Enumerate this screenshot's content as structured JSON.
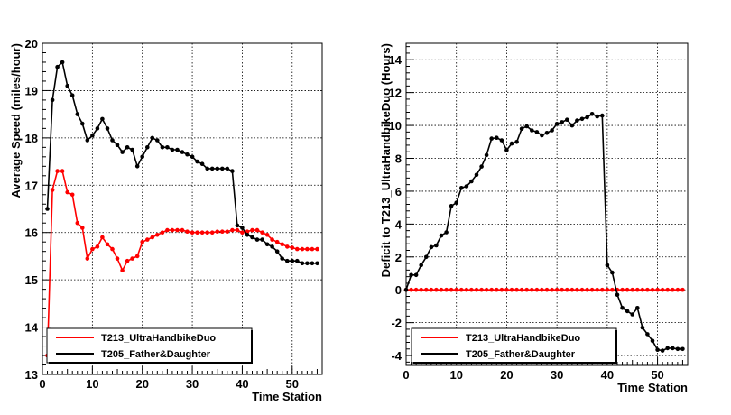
{
  "chart_data": [
    {
      "type": "line",
      "title": "",
      "xlabel": "Time Station",
      "ylabel": "Average Speed (miles/hour)",
      "xlim": [
        0,
        56
      ],
      "ylim": [
        13,
        20
      ],
      "grid": true,
      "legend_position": "bottom-left",
      "xticks": [
        "0",
        "10",
        "20",
        "30",
        "40",
        "50"
      ],
      "yticks": [
        "13",
        "14",
        "15",
        "16",
        "17",
        "18",
        "19",
        "20"
      ],
      "colors": {
        "T213": "#ff0000",
        "T205": "#000000"
      },
      "series": [
        {
          "name": "T213_UltraHandbikeDuo",
          "color": "#ff0000",
          "x": [
            1,
            2,
            3,
            4,
            5,
            6,
            7,
            8,
            9,
            10,
            11,
            12,
            13,
            14,
            15,
            16,
            17,
            18,
            19,
            20,
            21,
            22,
            23,
            24,
            25,
            26,
            27,
            28,
            29,
            30,
            31,
            32,
            33,
            34,
            35,
            36,
            37,
            38,
            39,
            40,
            41,
            42,
            43,
            44,
            45,
            46,
            47,
            48,
            49,
            50,
            51,
            52,
            53,
            54,
            55
          ],
          "values": [
            13.4,
            16.9,
            17.3,
            17.3,
            16.85,
            16.8,
            16.2,
            16.1,
            15.45,
            15.65,
            15.7,
            15.9,
            15.75,
            15.65,
            15.45,
            15.2,
            15.4,
            15.45,
            15.5,
            15.8,
            15.85,
            15.9,
            15.95,
            16.0,
            16.05,
            16.05,
            16.05,
            16.05,
            16.02,
            16.0,
            16.0,
            16.0,
            16.0,
            16.0,
            16.02,
            16.02,
            16.02,
            16.05,
            16.05,
            16.0,
            16.02,
            16.05,
            16.05,
            16.0,
            15.95,
            15.85,
            15.8,
            15.75,
            15.7,
            15.68,
            15.65,
            15.65,
            15.65,
            15.65,
            15.65
          ]
        },
        {
          "name": "T205_Father&Daughter",
          "color": "#000000",
          "x": [
            1,
            2,
            3,
            4,
            5,
            6,
            7,
            8,
            9,
            10,
            11,
            12,
            13,
            14,
            15,
            16,
            17,
            18,
            19,
            20,
            21,
            22,
            23,
            24,
            25,
            26,
            27,
            28,
            29,
            30,
            31,
            32,
            33,
            34,
            35,
            36,
            37,
            38,
            39,
            40,
            41,
            42,
            43,
            44,
            45,
            46,
            47,
            48,
            49,
            50,
            51,
            52,
            53,
            54,
            55
          ],
          "values": [
            16.5,
            18.8,
            19.5,
            19.6,
            19.1,
            18.9,
            18.5,
            18.3,
            17.95,
            18.05,
            18.2,
            18.4,
            18.2,
            17.95,
            17.85,
            17.7,
            17.8,
            17.75,
            17.4,
            17.6,
            17.8,
            18.0,
            17.95,
            17.8,
            17.8,
            17.75,
            17.75,
            17.7,
            17.65,
            17.6,
            17.5,
            17.45,
            17.35,
            17.35,
            17.35,
            17.35,
            17.35,
            17.3,
            16.15,
            16.1,
            15.95,
            15.9,
            15.85,
            15.85,
            15.75,
            15.7,
            15.6,
            15.45,
            15.4,
            15.4,
            15.4,
            15.35,
            15.35,
            15.35,
            15.35
          ]
        }
      ]
    },
    {
      "type": "line",
      "title": "",
      "xlabel": "Time Station",
      "ylabel": "Deficit to T213_UltraHandbikeDuo (Hours)",
      "xlim": [
        0,
        56
      ],
      "ylim": [
        -4.6,
        15
      ],
      "grid": true,
      "legend_position": "bottom-left",
      "xticks": [
        "0",
        "10",
        "20",
        "30",
        "40",
        "50"
      ],
      "yticks": [
        "-4",
        "-2",
        "0",
        "2",
        "4",
        "6",
        "8",
        "10",
        "12",
        "14"
      ],
      "colors": {
        "T213": "#ff0000",
        "T205": "#000000"
      },
      "series": [
        {
          "name": "T213_UltraHandbikeDuo",
          "color": "#ff0000",
          "x": [
            0,
            1,
            2,
            3,
            4,
            5,
            6,
            7,
            8,
            9,
            10,
            11,
            12,
            13,
            14,
            15,
            16,
            17,
            18,
            19,
            20,
            21,
            22,
            23,
            24,
            25,
            26,
            27,
            28,
            29,
            30,
            31,
            32,
            33,
            34,
            35,
            36,
            37,
            38,
            39,
            40,
            41,
            42,
            43,
            44,
            45,
            46,
            47,
            48,
            49,
            50,
            51,
            52,
            53,
            54,
            55
          ],
          "values": [
            0,
            0,
            0,
            0,
            0,
            0,
            0,
            0,
            0,
            0,
            0,
            0,
            0,
            0,
            0,
            0,
            0,
            0,
            0,
            0,
            0,
            0,
            0,
            0,
            0,
            0,
            0,
            0,
            0,
            0,
            0,
            0,
            0,
            0,
            0,
            0,
            0,
            0,
            0,
            0,
            0,
            0,
            0,
            0,
            0,
            0,
            0,
            0,
            0,
            0,
            0,
            0,
            0,
            0,
            0,
            0
          ]
        },
        {
          "name": "T205_Father&Daughter",
          "color": "#000000",
          "x": [
            0,
            1,
            2,
            3,
            4,
            5,
            6,
            7,
            8,
            9,
            10,
            11,
            12,
            13,
            14,
            15,
            16,
            17,
            18,
            19,
            20,
            21,
            22,
            23,
            24,
            25,
            26,
            27,
            28,
            29,
            30,
            31,
            32,
            33,
            34,
            35,
            36,
            37,
            38,
            39,
            40,
            41,
            42,
            43,
            44,
            45,
            46,
            47,
            48,
            49,
            50,
            51,
            52,
            53,
            54,
            55
          ],
          "values": [
            0,
            0.9,
            0.9,
            1.5,
            2.0,
            2.6,
            2.7,
            3.3,
            3.5,
            5.1,
            5.3,
            6.2,
            6.3,
            6.6,
            7.0,
            7.5,
            8.2,
            9.2,
            9.25,
            9.1,
            8.5,
            8.9,
            9.0,
            9.8,
            9.95,
            9.7,
            9.6,
            9.4,
            9.55,
            9.7,
            10.1,
            10.2,
            10.35,
            10.0,
            10.3,
            10.4,
            10.5,
            10.7,
            10.55,
            10.6,
            1.5,
            1.05,
            -0.3,
            -1.1,
            -1.3,
            -1.5,
            -1.1,
            -2.3,
            -2.7,
            -3.1,
            -3.65,
            -3.7,
            -3.55,
            -3.55,
            -3.6,
            -3.6
          ]
        }
      ]
    }
  ]
}
